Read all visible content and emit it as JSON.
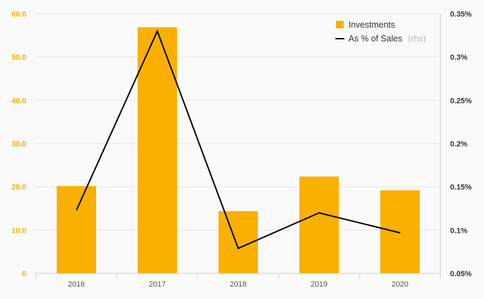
{
  "chart_data": {
    "type": "bar",
    "categories": [
      "2016",
      "2017",
      "2018",
      "2019",
      "2020"
    ],
    "series": [
      {
        "name": "Investments",
        "type": "bar",
        "axis": "left",
        "color": "#f9b000",
        "values": [
          20.2,
          56.9,
          14.4,
          22.4,
          19.2
        ]
      },
      {
        "name": "As % of Sales",
        "name_note": "(rhs)",
        "type": "line",
        "axis": "right",
        "color": "#000000",
        "values": [
          0.123,
          0.33,
          0.079,
          0.12,
          0.097
        ]
      }
    ],
    "y_left": {
      "range": [
        0,
        60
      ],
      "ticks": [
        0,
        10,
        20,
        30,
        40,
        50,
        60
      ],
      "tick_labels": [
        "0",
        "10.0",
        "20.0",
        "30.0",
        "40.0",
        "50.0",
        "60.0"
      ],
      "color": "#f5b000"
    },
    "y_right": {
      "range": [
        0.05,
        0.35
      ],
      "ticks": [
        0.05,
        0.1,
        0.15,
        0.2,
        0.25,
        0.3,
        0.35
      ],
      "tick_labels": [
        "0.05%",
        "0.1%",
        "0.15%",
        "0.2%",
        "0.25%",
        "0.3%",
        "0.35%"
      ],
      "color": "#333333"
    },
    "grid": true,
    "legend_position": "top-right"
  }
}
